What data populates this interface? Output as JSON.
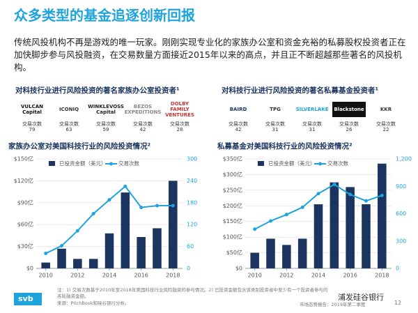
{
  "header": {
    "title": "众多类型的基金追逐创新回报",
    "body": "传统风投机构不再是游戏的唯一玩家。刚刚实现专业化的家族办公室和资金充裕的私募股权投资者正在加快脚步参与风投融资，在交易数量方面接近2015年以来的高点，并且正不断超越那些著名的风投机构。"
  },
  "investors": [
    {
      "title": "对科技行业进行风险投资的著名家族办公室投资者¹",
      "count_label": "交易次数",
      "items": [
        {
          "name": "VULCAN Capital",
          "count": 79
        },
        {
          "name": "ICONIQ",
          "count": 63
        },
        {
          "name": "WINKLEVOSS Capital",
          "count": 59
        },
        {
          "name": "BEZOS EXPEDITIONS",
          "count": 42
        },
        {
          "name": "DOLBY FAMILY VENTURES",
          "count": 28
        }
      ]
    },
    {
      "title": "对科技行业进行风险投资的著名私募基金投资者¹",
      "count_label": "交易次数",
      "items": [
        {
          "name": "BAIRD",
          "count": 42
        },
        {
          "name": "TPG",
          "count": 31
        },
        {
          "name": "SILVERLAKE",
          "count": 31
        },
        {
          "name": "Blackstone",
          "count": 26
        },
        {
          "name": "KKR",
          "count": 22
        }
      ]
    }
  ],
  "chart_data": [
    {
      "type": "combo",
      "title": "家族办公室对美国科技行业的风险投资情况²",
      "x": [
        2010,
        2011,
        2012,
        2013,
        2014,
        2015,
        2016,
        2017,
        2018
      ],
      "xlim": [
        2009.4,
        2018.6
      ],
      "xticks": [
        2010,
        2012,
        2014,
        2016,
        2018
      ],
      "ylim": [
        0,
        150
      ],
      "yticks": [
        {
          "value": 0,
          "label": "$0"
        },
        {
          "value": 30,
          "label": "$30亿"
        },
        {
          "value": 60,
          "label": "$60亿"
        },
        {
          "value": 90,
          "label": "$90亿"
        },
        {
          "value": 120,
          "label": "$120亿"
        },
        {
          "value": 150,
          "label": "$150亿"
        }
      ],
      "y2lim": [
        0,
        300
      ],
      "y2ticks": [
        0,
        60,
        120,
        180,
        240,
        300
      ],
      "grid": true,
      "series": [
        {
          "name": "已投资金额（美元）",
          "kind": "bar",
          "color": "#1b3560",
          "values": [
            8,
            27,
            13,
            13,
            48,
            104,
            43,
            55,
            120
          ]
        },
        {
          "name": "交易次数",
          "kind": "line",
          "axis": "y2",
          "color": "#1fa3dd",
          "values": [
            41,
            62,
            103,
            150,
            188,
            225,
            167,
            172,
            172
          ]
        }
      ]
    },
    {
      "type": "combo",
      "title": "私募基金对美国科技行业的风险投资情况²",
      "x": [
        2010,
        2011,
        2012,
        2013,
        2014,
        2015,
        2016,
        2017,
        2018
      ],
      "xlim": [
        2009.4,
        2018.6
      ],
      "xticks": [
        2010,
        2012,
        2014,
        2016,
        2018
      ],
      "ylim": [
        0,
        350
      ],
      "yticks": [
        {
          "value": 0,
          "label": "$0"
        },
        {
          "value": 50,
          "label": "$50亿"
        },
        {
          "value": 100,
          "label": "$100亿"
        },
        {
          "value": 150,
          "label": "$150亿"
        },
        {
          "value": 200,
          "label": "$200亿"
        },
        {
          "value": 250,
          "label": "$250亿"
        },
        {
          "value": 300,
          "label": "$300亿"
        },
        {
          "value": 350,
          "label": "$350亿"
        }
      ],
      "y2lim": [
        0,
        1200
      ],
      "y2ticks": [
        {
          "value": 0,
          "label": "0"
        },
        {
          "value": 300,
          "label": "300"
        },
        {
          "value": 600,
          "label": "600"
        },
        {
          "value": 900,
          "label": "900"
        },
        {
          "value": 1200,
          "label": "1,200"
        }
      ],
      "grid": true,
      "series": [
        {
          "name": "已投资金额（美元）",
          "kind": "bar",
          "color": "#1b3560",
          "values": [
            50,
            95,
            75,
            95,
            205,
            275,
            260,
            205,
            335
          ]
        },
        {
          "name": "交易次数",
          "kind": "line",
          "axis": "y2",
          "color": "#1fa3dd",
          "values": [
            430,
            520,
            590,
            670,
            820,
            920,
            810,
            740,
            800
          ]
        }
      ]
    }
  ],
  "footer": {
    "notes": "注：1) 交易次数基于2010年至2018年美国科技行业风险融资的参与情况。2) 已投资金额包含该类别投资者中至少有一个投资者参与的各轮融资金额。",
    "source": "来源：PitchBook和硅谷银行分析。",
    "logo": "svb",
    "report": "市场态势报告：2019年第二季度",
    "page": "12",
    "brand": "浦发硅谷银行"
  }
}
